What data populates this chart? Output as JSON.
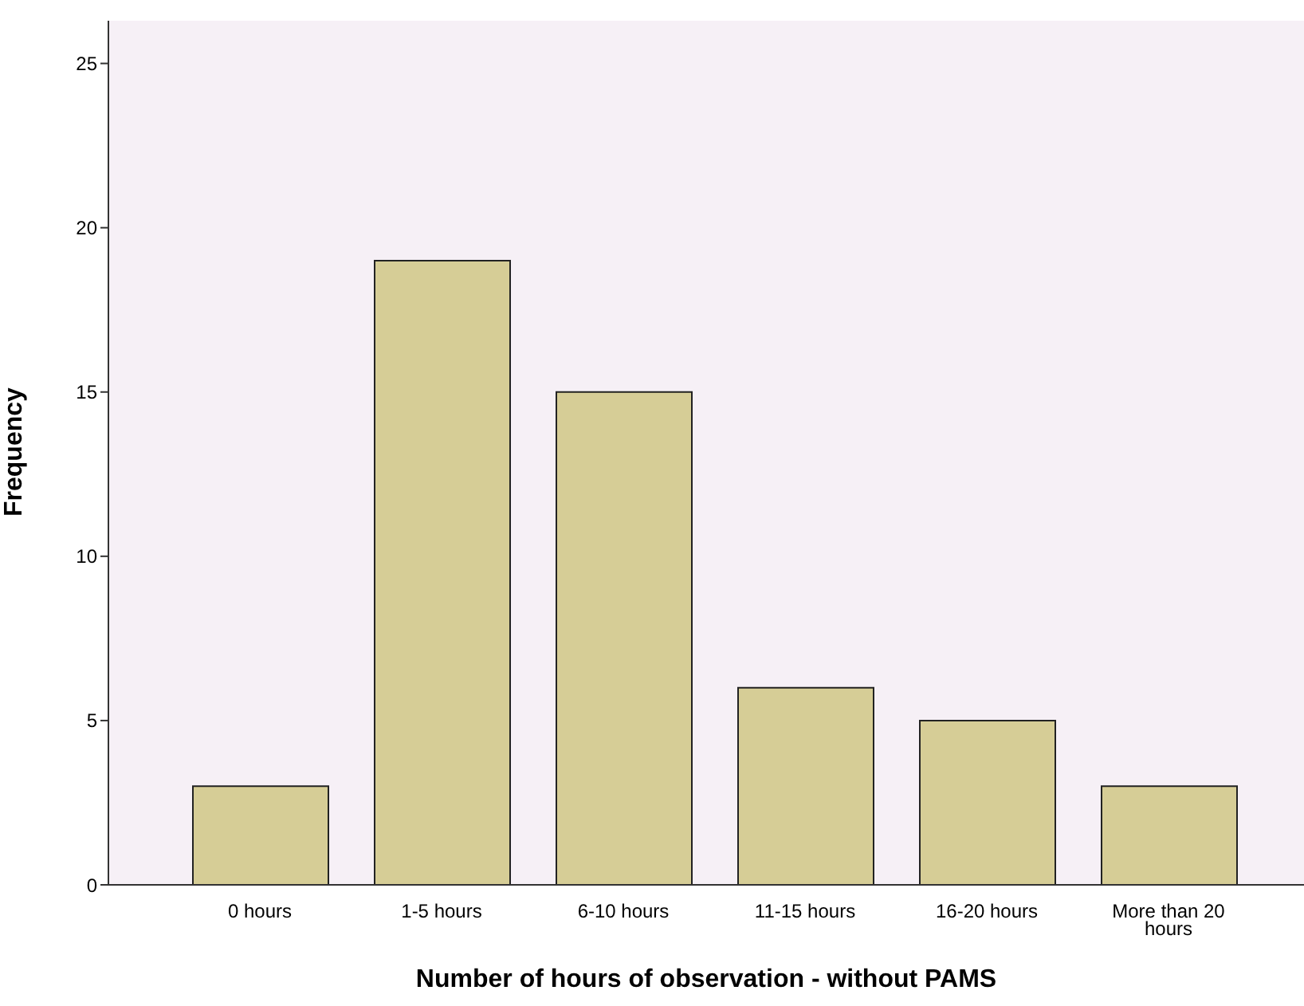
{
  "chart_data": {
    "type": "bar",
    "xlabel": "Number of hours of observation - without PAMS",
    "ylabel": "Frequency",
    "categories": [
      "0 hours",
      "1-5 hours",
      "6-10 hours",
      "11-15 hours",
      "16-20 hours",
      "More than 20 hours"
    ],
    "values": [
      3,
      19,
      15,
      6,
      5,
      3
    ],
    "color": "#d6cd96",
    "ylim": [
      0,
      26.3
    ],
    "yticks": [
      0,
      5,
      10,
      15,
      20,
      25
    ]
  }
}
